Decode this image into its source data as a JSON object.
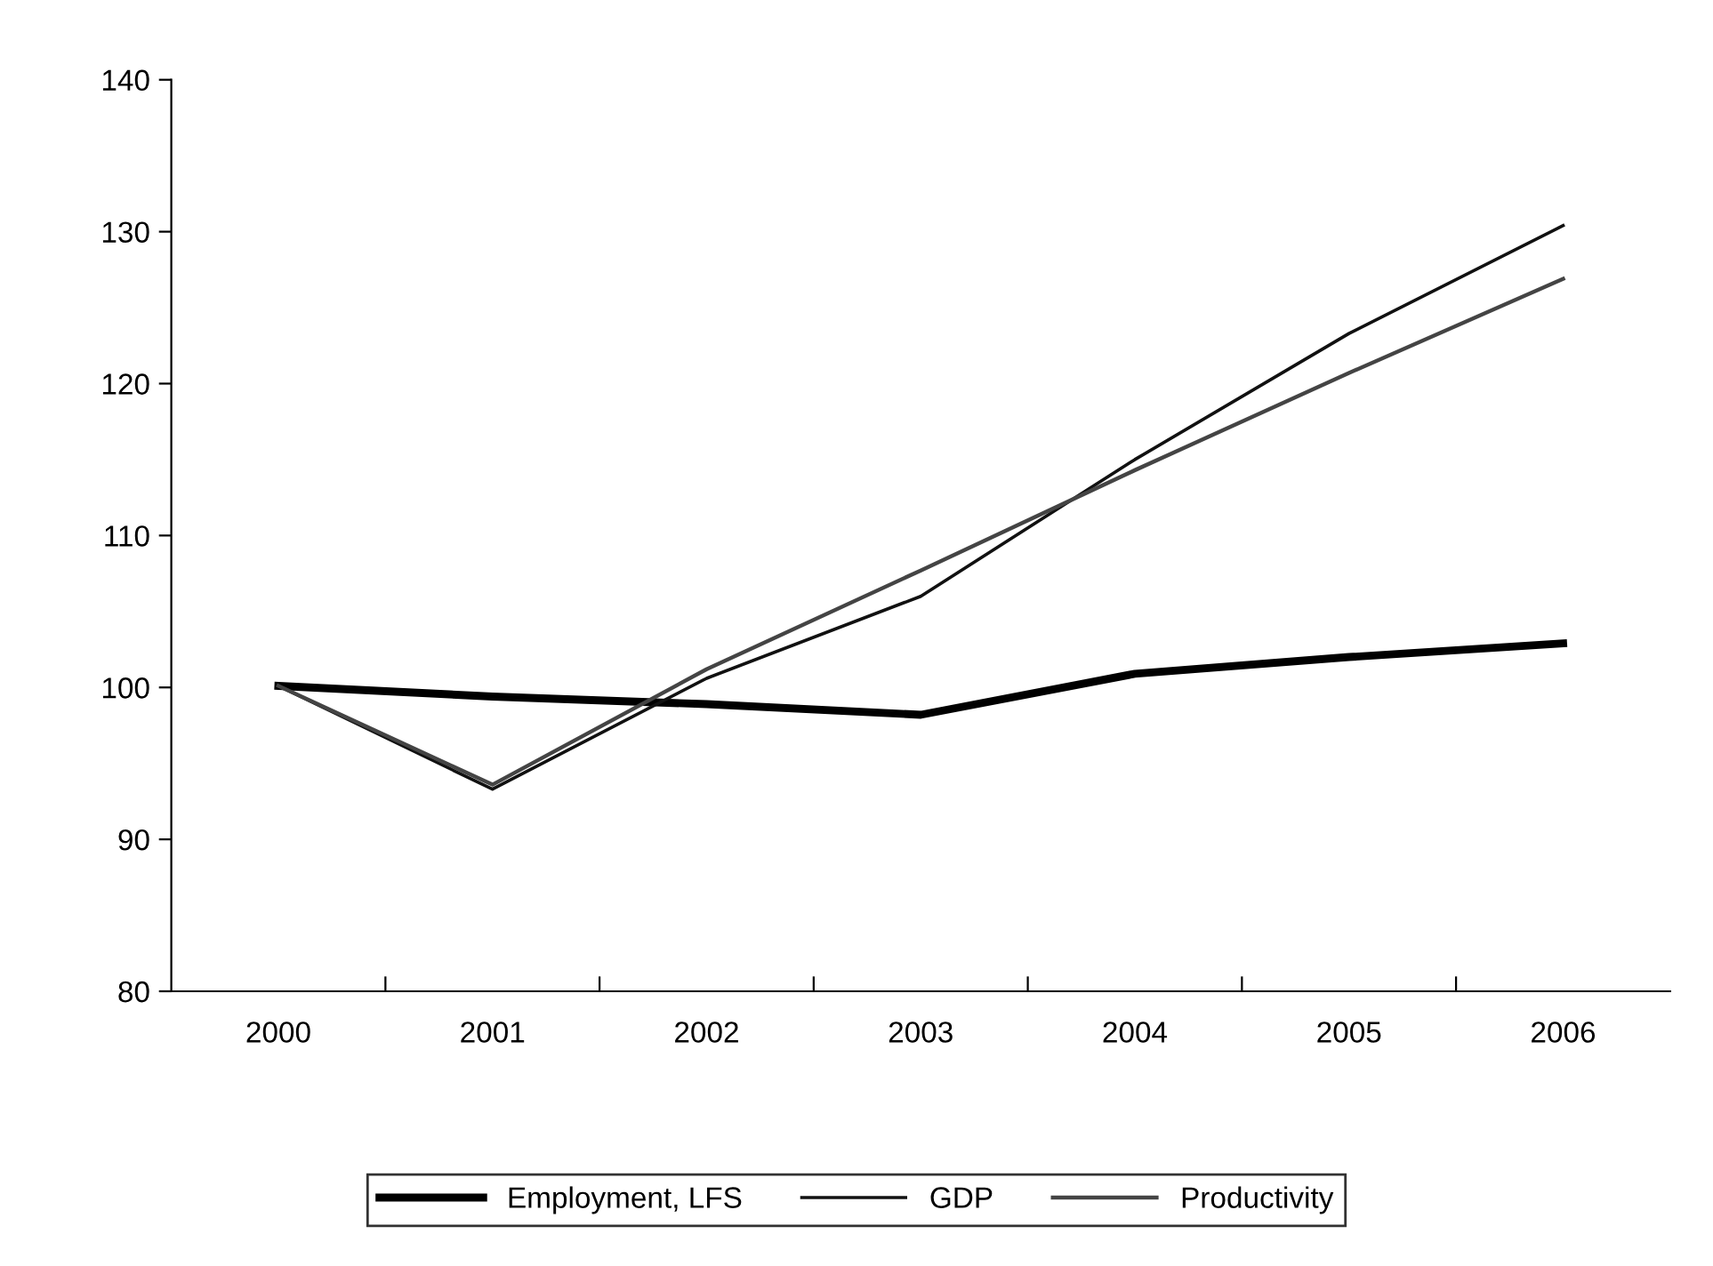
{
  "chart_data": {
    "type": "line",
    "categories": [
      "2000",
      "2001",
      "2002",
      "2003",
      "2004",
      "2005",
      "2006"
    ],
    "series": [
      {
        "name": "Employment, LFS",
        "color": "#000000",
        "values": [
          100.1,
          99.4,
          98.9,
          98.2,
          100.9,
          102.0,
          102.9
        ]
      },
      {
        "name": "GDP",
        "color": "#111111",
        "values": [
          100.1,
          93.3,
          100.6,
          106.0,
          115.0,
          123.3,
          130.4
        ]
      },
      {
        "name": "Productivity",
        "color": "#444444",
        "values": [
          100.1,
          93.6,
          101.2,
          107.7,
          114.3,
          120.7,
          126.9
        ]
      }
    ],
    "ylim": [
      80,
      140
    ],
    "yticks": [
      80,
      90,
      100,
      110,
      120,
      130,
      140
    ],
    "grid": false,
    "legend": "bottom",
    "marker": "none",
    "line_style": "solid"
  }
}
